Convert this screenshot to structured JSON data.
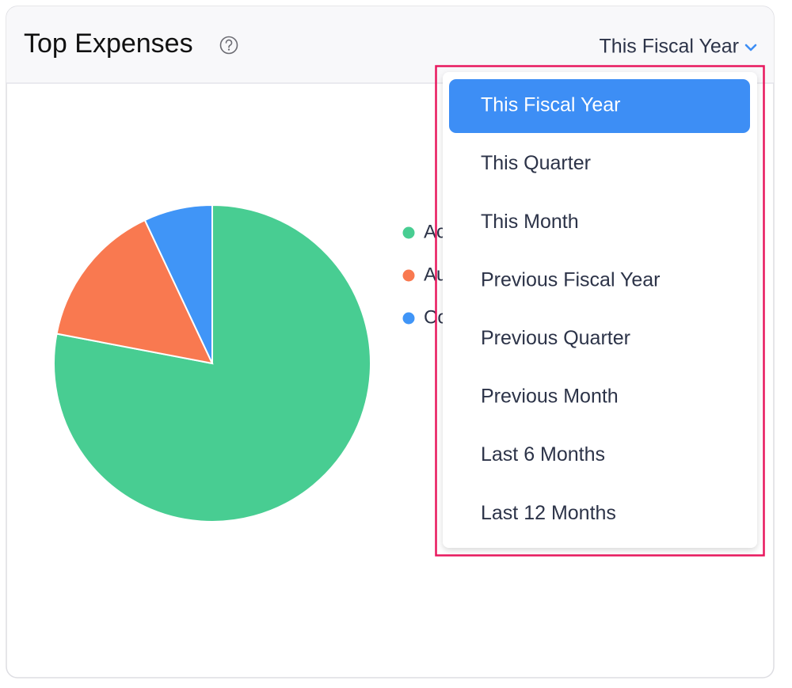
{
  "chart_data": {
    "type": "pie",
    "title": "Top Expenses",
    "categories": [
      "Ac",
      "Au",
      "Co"
    ],
    "values": [
      78,
      15,
      7
    ],
    "colors": [
      "#48cd92",
      "#f97950",
      "#4095f7"
    ]
  },
  "period_dropdown": {
    "selected": "This Fiscal Year",
    "options": [
      "This Fiscal Year",
      "This Quarter",
      "This Month",
      "Previous Fiscal Year",
      "Previous Quarter",
      "Previous Month",
      "Last 6 Months",
      "Last 12 Months"
    ]
  }
}
